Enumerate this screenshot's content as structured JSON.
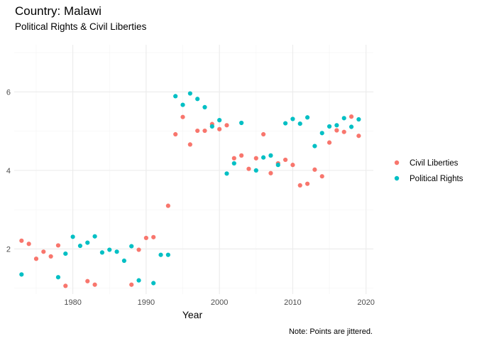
{
  "chart_data": {
    "type": "scatter",
    "title": "Country: Malawi",
    "subtitle": "Political Rights & Civil Liberties",
    "xlabel": "Year",
    "ylabel": "",
    "caption": "Note: Points are jittered.",
    "xlim": [
      1972,
      2021
    ],
    "ylim": [
      0.85,
      7.2
    ],
    "x_ticks": [
      1980,
      1990,
      2000,
      2010,
      2020
    ],
    "y_ticks": [
      2,
      4,
      6
    ],
    "grid": true,
    "legend_position": "right",
    "series": [
      {
        "name": "Civil Liberties",
        "color": "#F8766D",
        "points": [
          [
            1973,
            2.21
          ],
          [
            1974,
            2.13
          ],
          [
            1975,
            1.75
          ],
          [
            1976,
            1.93
          ],
          [
            1977,
            1.81
          ],
          [
            1978,
            2.09
          ],
          [
            1979,
            1.06
          ],
          [
            1982,
            1.18
          ],
          [
            1983,
            1.09
          ],
          [
            1988,
            1.09
          ],
          [
            1989,
            1.98
          ],
          [
            1990,
            2.28
          ],
          [
            1991,
            2.3
          ],
          [
            1993,
            3.1
          ],
          [
            1994,
            4.92
          ],
          [
            1995,
            5.36
          ],
          [
            1996,
            4.66
          ],
          [
            1997,
            5.01
          ],
          [
            1998,
            5.01
          ],
          [
            1999,
            5.18
          ],
          [
            2000,
            5.05
          ],
          [
            2001,
            5.15
          ],
          [
            2002,
            4.31
          ],
          [
            2003,
            4.38
          ],
          [
            2004,
            4.04
          ],
          [
            2005,
            4.31
          ],
          [
            2006,
            4.92
          ],
          [
            2007,
            3.93
          ],
          [
            2008,
            4.18
          ],
          [
            2009,
            4.27
          ],
          [
            2010,
            4.14
          ],
          [
            2011,
            3.62
          ],
          [
            2012,
            3.66
          ],
          [
            2013,
            4.02
          ],
          [
            2014,
            3.85
          ],
          [
            2015,
            4.71
          ],
          [
            2016,
            5.02
          ],
          [
            2017,
            4.98
          ],
          [
            2018,
            5.37
          ],
          [
            2019,
            4.88
          ]
        ]
      },
      {
        "name": "Political Rights",
        "color": "#00BFC4",
        "points": [
          [
            1973,
            1.35
          ],
          [
            1978,
            1.28
          ],
          [
            1979,
            1.88
          ],
          [
            1980,
            2.31
          ],
          [
            1981,
            2.08
          ],
          [
            1982,
            2.16
          ],
          [
            1983,
            2.32
          ],
          [
            1984,
            1.91
          ],
          [
            1985,
            1.98
          ],
          [
            1986,
            1.93
          ],
          [
            1987,
            1.7
          ],
          [
            1988,
            2.07
          ],
          [
            1989,
            1.2
          ],
          [
            1991,
            1.13
          ],
          [
            1992,
            1.85
          ],
          [
            1993,
            1.85
          ],
          [
            1994,
            5.89
          ],
          [
            1995,
            5.67
          ],
          [
            1996,
            5.96
          ],
          [
            1997,
            5.82
          ],
          [
            1998,
            5.61
          ],
          [
            1999,
            5.12
          ],
          [
            2000,
            5.28
          ],
          [
            2001,
            3.92
          ],
          [
            2002,
            4.18
          ],
          [
            2003,
            5.21
          ],
          [
            2005,
            4.0
          ],
          [
            2006,
            4.33
          ],
          [
            2007,
            4.38
          ],
          [
            2008,
            4.14
          ],
          [
            2009,
            5.2
          ],
          [
            2010,
            5.31
          ],
          [
            2011,
            5.19
          ],
          [
            2012,
            5.35
          ],
          [
            2013,
            4.62
          ],
          [
            2014,
            4.95
          ],
          [
            2015,
            5.12
          ],
          [
            2016,
            5.15
          ],
          [
            2017,
            5.33
          ],
          [
            2018,
            5.11
          ],
          [
            2019,
            5.3
          ]
        ]
      }
    ]
  }
}
